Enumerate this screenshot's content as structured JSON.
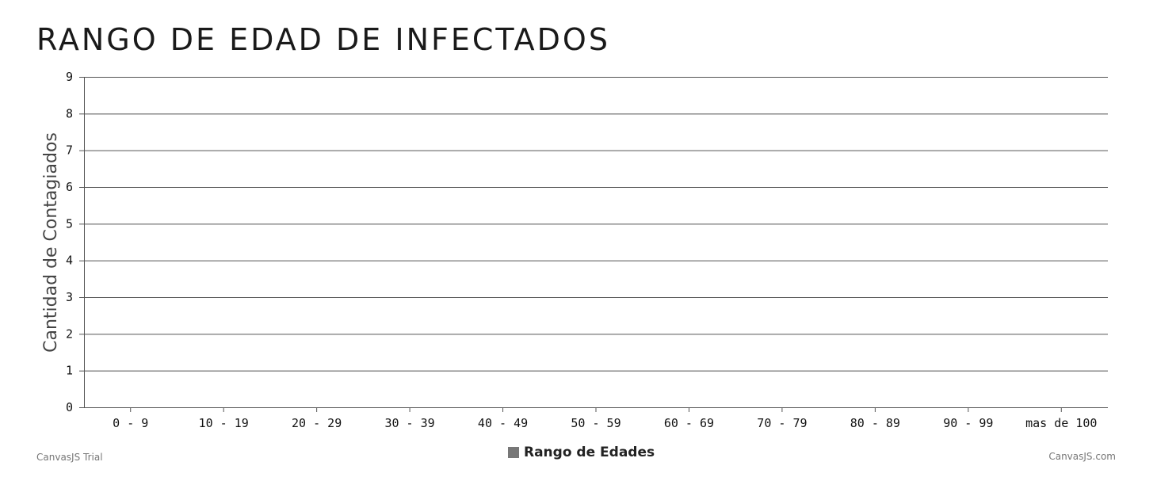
{
  "chart_data": {
    "type": "bar",
    "title": "RANGO DE EDAD DE INFECTADOS",
    "xlabel": "",
    "ylabel": "Cantidad de Contagiados",
    "categories": [
      "0 - 9",
      "10 - 19",
      "20 - 29",
      "30 - 39",
      "40 - 49",
      "50 - 59",
      "60 - 69",
      "70 - 79",
      "80 - 89",
      "90 - 99",
      "mas de 100"
    ],
    "series": [
      {
        "name": "Rango de Edades",
        "values": [
          0,
          0,
          0,
          0,
          0,
          0,
          0,
          0,
          0,
          0,
          0
        ],
        "color": "#777777"
      }
    ],
    "ylim": [
      0,
      9
    ],
    "yticks": [
      "0",
      "1",
      "2",
      "3",
      "4",
      "5",
      "6",
      "7",
      "8",
      "9"
    ],
    "grid": true,
    "legend_position": "bottom-center"
  },
  "credits": {
    "left": "CanvasJS Trial",
    "right": "CanvasJS.com"
  },
  "colors": {
    "grid": "#555555",
    "axis": "#555555",
    "legend_marker": "#777777"
  }
}
